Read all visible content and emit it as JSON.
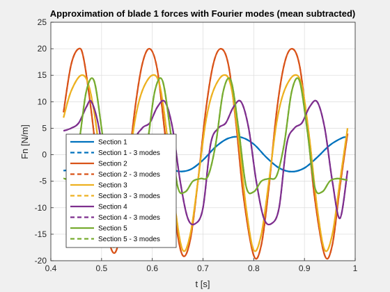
{
  "chart_data": {
    "type": "line",
    "title": "Approximation of blade 1 forces with Fourier modes (mean subtracted)",
    "xlabel": "t [s]",
    "ylabel": "Fn [N/m]",
    "xlim": [
      0.4,
      1.0
    ],
    "ylim": [
      -20,
      25
    ],
    "xticks": [
      0.4,
      0.5,
      0.6,
      0.7,
      0.8,
      0.9,
      1.0
    ],
    "xtick_labels": [
      "0.4",
      "0.5",
      "0.6",
      "0.7",
      "0.8",
      "0.9",
      "1"
    ],
    "yticks": [
      -20,
      -15,
      -10,
      -5,
      0,
      5,
      10,
      15,
      20,
      25
    ],
    "ytick_labels": [
      "-20",
      "-15",
      "-10",
      "-5",
      "0",
      "5",
      "10",
      "15",
      "20",
      "25"
    ],
    "grid": true,
    "legend_position": "bottom-left",
    "series": [
      {
        "name": "Section 1",
        "style": "solid",
        "color": "#0072BD",
        "x": [
          0.425,
          0.45,
          0.475,
          0.5,
          0.525,
          0.55,
          0.575,
          0.6,
          0.625,
          0.65,
          0.675,
          0.7,
          0.725,
          0.75,
          0.775,
          0.8,
          0.825,
          0.85,
          0.875,
          0.9,
          0.925,
          0.95,
          0.975,
          0.985
        ],
        "y": [
          -3.0,
          -2.6,
          -1.0,
          1.2,
          3.0,
          3.3,
          2.2,
          0.0,
          -2.0,
          -3.1,
          -2.8,
          -1.0,
          1.5,
          3.1,
          3.3,
          2.0,
          -0.5,
          -2.5,
          -3.2,
          -2.5,
          -0.5,
          1.8,
          3.2,
          3.3
        ]
      },
      {
        "name": "Section 1 - 3 modes",
        "style": "dashed",
        "color": "#0072BD",
        "x": [
          0.425,
          0.45,
          0.475,
          0.5,
          0.525,
          0.55,
          0.575,
          0.6,
          0.625,
          0.65,
          0.675,
          0.7,
          0.725,
          0.75,
          0.775,
          0.8,
          0.825,
          0.85,
          0.875,
          0.9,
          0.925,
          0.95,
          0.975,
          0.985
        ],
        "y": [
          -3.0,
          -2.6,
          -1.0,
          1.2,
          3.0,
          3.3,
          2.2,
          0.0,
          -2.0,
          -3.1,
          -2.8,
          -1.0,
          1.5,
          3.1,
          3.3,
          2.0,
          -0.5,
          -2.5,
          -3.2,
          -2.5,
          -0.5,
          1.8,
          3.2,
          3.3
        ]
      },
      {
        "name": "Section 2",
        "style": "solid",
        "color": "#D95319",
        "x": [
          0.425,
          0.44,
          0.455,
          0.465,
          0.48,
          0.5,
          0.52,
          0.535,
          0.55,
          0.565,
          0.58,
          0.595,
          0.61,
          0.625,
          0.645,
          0.66,
          0.675,
          0.69,
          0.705,
          0.72,
          0.735,
          0.75,
          0.765,
          0.78,
          0.8,
          0.815,
          0.83,
          0.845,
          0.86,
          0.875,
          0.89,
          0.905,
          0.92,
          0.94,
          0.955,
          0.97,
          0.985
        ],
        "y": [
          8,
          17,
          20,
          18,
          8,
          -8,
          -18,
          -16,
          -5,
          8,
          17,
          20,
          16,
          4,
          -12,
          -19,
          -16,
          -5,
          8,
          17,
          20,
          17,
          6,
          -8,
          -19,
          -17,
          -6,
          8,
          17,
          20,
          17,
          6,
          -8,
          -19,
          -17,
          -6,
          4
        ]
      },
      {
        "name": "Section 2 - 3 modes",
        "style": "dashed",
        "color": "#D95319",
        "x": [
          0.425,
          0.44,
          0.455,
          0.465,
          0.48,
          0.5,
          0.52,
          0.535,
          0.55,
          0.565,
          0.58,
          0.595,
          0.61,
          0.625,
          0.645,
          0.66,
          0.675,
          0.69,
          0.705,
          0.72,
          0.735,
          0.75,
          0.765,
          0.78,
          0.8,
          0.815,
          0.83,
          0.845,
          0.86,
          0.875,
          0.89,
          0.905,
          0.92,
          0.94,
          0.955,
          0.97,
          0.985
        ],
        "y": [
          8,
          17,
          20,
          18,
          8,
          -8,
          -18,
          -16,
          -5,
          8,
          17,
          20,
          16,
          4,
          -12,
          -19,
          -16,
          -5,
          8,
          17,
          20,
          17,
          6,
          -8,
          -19,
          -17,
          -6,
          8,
          17,
          20,
          17,
          6,
          -8,
          -19,
          -17,
          -6,
          4
        ]
      },
      {
        "name": "Section 3",
        "style": "solid",
        "color": "#EDB120",
        "x": [
          0.425,
          0.44,
          0.46,
          0.475,
          0.49,
          0.505,
          0.52,
          0.535,
          0.55,
          0.565,
          0.58,
          0.6,
          0.615,
          0.63,
          0.645,
          0.66,
          0.675,
          0.69,
          0.705,
          0.72,
          0.74,
          0.755,
          0.77,
          0.785,
          0.8,
          0.815,
          0.83,
          0.845,
          0.86,
          0.88,
          0.895,
          0.91,
          0.925,
          0.94,
          0.955,
          0.97,
          0.985
        ],
        "y": [
          7,
          12,
          15,
          13,
          5,
          -8,
          -17,
          -15,
          -5,
          6,
          12,
          15,
          13,
          3,
          -10,
          -18,
          -15,
          -5,
          6,
          12,
          15,
          13,
          3,
          -10,
          -18,
          -15,
          -5,
          6,
          12,
          15,
          13,
          3,
          -10,
          -18,
          -15,
          -5,
          5
        ]
      },
      {
        "name": "Section 3 - 3 modes",
        "style": "dashed",
        "color": "#EDB120",
        "x": [
          0.425,
          0.44,
          0.46,
          0.475,
          0.49,
          0.505,
          0.52,
          0.535,
          0.55,
          0.565,
          0.58,
          0.6,
          0.615,
          0.63,
          0.645,
          0.66,
          0.675,
          0.69,
          0.705,
          0.72,
          0.74,
          0.755,
          0.77,
          0.785,
          0.8,
          0.815,
          0.83,
          0.845,
          0.86,
          0.88,
          0.895,
          0.91,
          0.925,
          0.94,
          0.955,
          0.97,
          0.985
        ],
        "y": [
          7,
          12,
          15,
          13,
          5,
          -8,
          -17,
          -15,
          -5,
          6,
          12,
          15,
          13,
          3,
          -10,
          -18,
          -15,
          -5,
          6,
          12,
          15,
          13,
          3,
          -10,
          -18,
          -15,
          -5,
          6,
          12,
          15,
          13,
          3,
          -10,
          -18,
          -15,
          -5,
          5
        ]
      },
      {
        "name": "Section 4",
        "style": "solid",
        "color": "#7E2F8E",
        "x": [
          0.425,
          0.44,
          0.455,
          0.47,
          0.48,
          0.495,
          0.51,
          0.525,
          0.54,
          0.55,
          0.565,
          0.58,
          0.595,
          0.61,
          0.625,
          0.64,
          0.655,
          0.67,
          0.685,
          0.7,
          0.715,
          0.73,
          0.745,
          0.76,
          0.775,
          0.79,
          0.805,
          0.82,
          0.835,
          0.85,
          0.865,
          0.88,
          0.895,
          0.91,
          0.925,
          0.94,
          0.955,
          0.97,
          0.985
        ],
        "y": [
          4.5,
          5.0,
          6.0,
          9.0,
          10.0,
          5.0,
          -5,
          -12,
          -13,
          -10,
          2,
          5,
          6,
          9,
          10,
          5,
          -5,
          -12,
          -13,
          -10,
          2,
          5,
          6,
          9,
          10,
          5,
          -5,
          -12,
          -13,
          -10,
          2,
          5,
          6,
          9,
          10,
          5,
          -5,
          -12,
          -3
        ]
      },
      {
        "name": "Section 4 - 3 modes",
        "style": "dashed",
        "color": "#7E2F8E",
        "x": [
          0.425,
          0.44,
          0.455,
          0.47,
          0.48,
          0.495,
          0.51,
          0.525,
          0.54,
          0.55,
          0.565,
          0.58,
          0.595,
          0.61,
          0.625,
          0.64,
          0.655,
          0.67,
          0.685,
          0.7,
          0.715,
          0.73,
          0.745,
          0.76,
          0.775,
          0.79,
          0.805,
          0.82,
          0.835,
          0.85,
          0.865,
          0.88,
          0.895,
          0.91,
          0.925,
          0.94,
          0.955,
          0.97,
          0.985
        ],
        "y": [
          4.5,
          5.0,
          6.0,
          9.0,
          10.0,
          5.0,
          -5,
          -12,
          -13,
          -10,
          2,
          5,
          6,
          9,
          10,
          5,
          -5,
          -12,
          -13,
          -10,
          2,
          5,
          6,
          9,
          10,
          5,
          -5,
          -12,
          -13,
          -10,
          2,
          5,
          6,
          9,
          10,
          5,
          -5,
          -12,
          -3
        ]
      },
      {
        "name": "Section 5",
        "style": "solid",
        "color": "#77AC30",
        "x": [
          0.425,
          0.44,
          0.455,
          0.47,
          0.485,
          0.5,
          0.515,
          0.53,
          0.545,
          0.56,
          0.575,
          0.59,
          0.605,
          0.62,
          0.635,
          0.65,
          0.665,
          0.68,
          0.695,
          0.71,
          0.725,
          0.74,
          0.755,
          0.77,
          0.785,
          0.8,
          0.815,
          0.83,
          0.845,
          0.86,
          0.875,
          0.89,
          0.905,
          0.92,
          0.935,
          0.95,
          0.965,
          0.985
        ],
        "y": [
          -4.5,
          -4.0,
          2,
          12,
          14,
          5,
          -6,
          -7,
          -5,
          -4.5,
          -4.0,
          2,
          12,
          14,
          5,
          -6,
          -7,
          -5,
          -4.5,
          -4.0,
          2,
          12,
          14,
          5,
          -6,
          -7,
          -5,
          -4.5,
          -4.0,
          2,
          12,
          14,
          5,
          -6,
          -7,
          -5,
          -4.5,
          -4.8
        ]
      },
      {
        "name": "Section 5 - 3 modes",
        "style": "dashed",
        "color": "#77AC30",
        "x": [
          0.425,
          0.44,
          0.455,
          0.47,
          0.485,
          0.5,
          0.515,
          0.53,
          0.545,
          0.56,
          0.575,
          0.59,
          0.605,
          0.62,
          0.635,
          0.65,
          0.665,
          0.68,
          0.695,
          0.71,
          0.725,
          0.74,
          0.755,
          0.77,
          0.785,
          0.8,
          0.815,
          0.83,
          0.845,
          0.86,
          0.875,
          0.89,
          0.905,
          0.92,
          0.935,
          0.95,
          0.965,
          0.985
        ],
        "y": [
          -4.5,
          -4.0,
          2,
          12,
          14,
          5,
          -6,
          -7,
          -5,
          -4.5,
          -4.0,
          2,
          12,
          14,
          5,
          -6,
          -7,
          -5,
          -4.5,
          -4.0,
          2,
          12,
          14,
          5,
          -6,
          -7,
          -5,
          -4.5,
          -4.0,
          2,
          12,
          14,
          5,
          -6,
          -7,
          -5,
          -4.5,
          -4.8
        ]
      }
    ]
  }
}
